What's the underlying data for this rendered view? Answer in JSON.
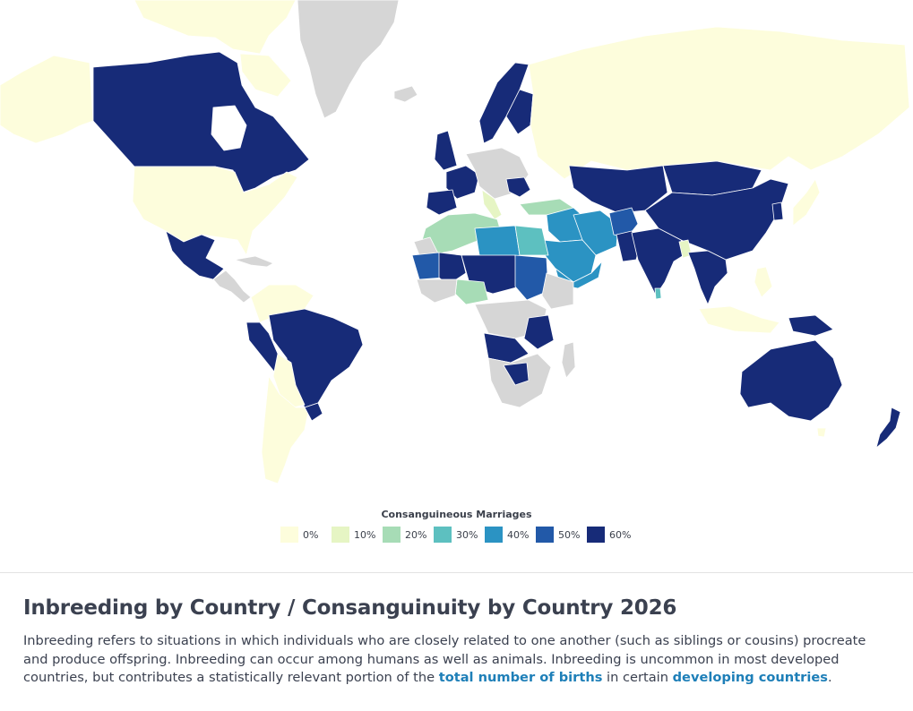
{
  "legend": {
    "title": "Consanguineous Marriages",
    "items": [
      {
        "label": "0%",
        "color": "#fdfddc"
      },
      {
        "label": "10%",
        "color": "#e6f5c4"
      },
      {
        "label": "20%",
        "color": "#a7dcb6"
      },
      {
        "label": "30%",
        "color": "#5dc0c0"
      },
      {
        "label": "40%",
        "color": "#2b93c3"
      },
      {
        "label": "50%",
        "color": "#2259a8"
      },
      {
        "label": "60%",
        "color": "#172b78"
      }
    ],
    "no_data_color": "#d6d6d6"
  },
  "article": {
    "title": "Inbreeding by Country / Consanguinuity by Country 2026",
    "intro_part1": "Inbreeding refers to situations in which individuals who are closely related to one another (such as siblings or cousins) procreate and produce offspring. Inbreeding can occur among humans as well as animals. Inbreeding is uncommon in most developed countries, but contributes a statistically relevant portion of the ",
    "link1": "total number of births",
    "intro_part2": " in certain ",
    "link2": "developing countries",
    "intro_part3": "."
  }
}
